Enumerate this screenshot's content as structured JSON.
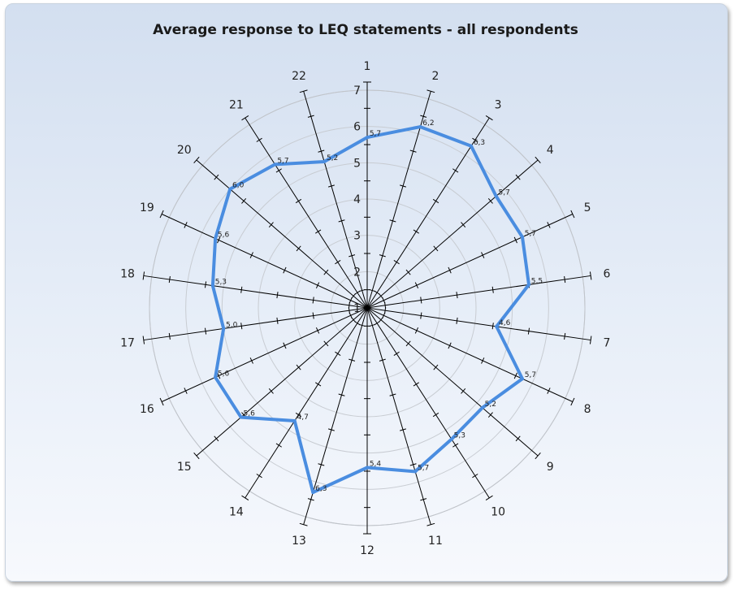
{
  "chart_data": {
    "type": "radar",
    "title": "Average response to LEQ statements - all respondents",
    "categories": [
      "1",
      "2",
      "3",
      "4",
      "5",
      "6",
      "7",
      "8",
      "9",
      "10",
      "11",
      "12",
      "13",
      "14",
      "15",
      "16",
      "17",
      "18",
      "19",
      "20",
      "21",
      "22"
    ],
    "series": [
      {
        "values": [
          5.7,
          6.2,
          6.3,
          5.7,
          5.7,
          5.5,
          4.6,
          5.7,
          5.2,
          5.3,
          5.7,
          5.4,
          6.3,
          4.7,
          5.6,
          5.6,
          5.0,
          5.3,
          5.6,
          6.0,
          5.7,
          5.2
        ],
        "labels": [
          "5,7",
          "6,2",
          "6,3",
          "5,7",
          "5,7",
          "5,5",
          "4,6",
          "5,7",
          "5,2",
          "5,3",
          "5,7",
          "5,4",
          "6,3",
          "4,7",
          "5,6",
          "5,6",
          "5,0",
          "5,3",
          "5,6",
          "6,0",
          "5,7",
          "5,2"
        ],
        "color": "#4a8de0"
      }
    ],
    "rlim": [
      1,
      7
    ],
    "ring_labels": [
      "1",
      "2",
      "3",
      "4",
      "5",
      "6",
      "7"
    ],
    "grid": true
  }
}
